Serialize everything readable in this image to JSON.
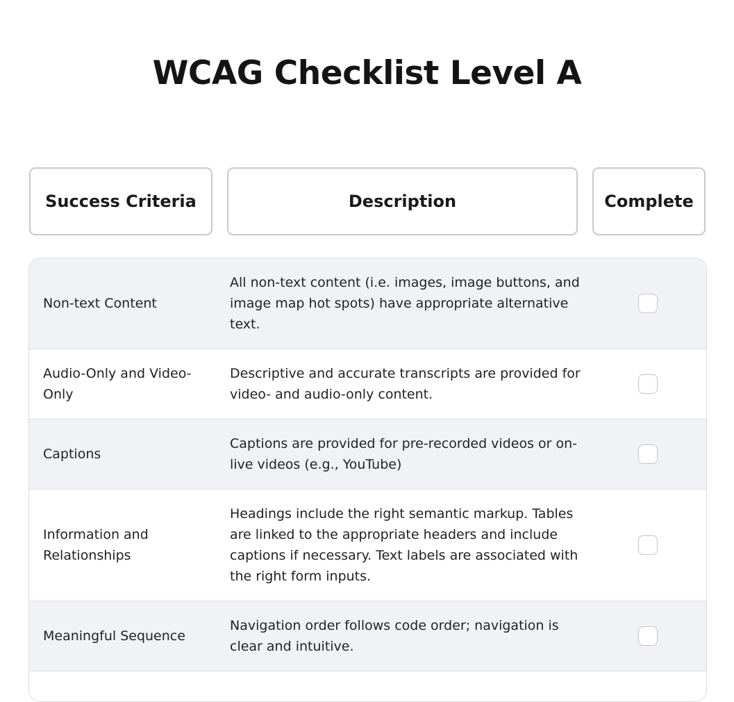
{
  "page": {
    "title": "WCAG Checklist Level A"
  },
  "headers": {
    "criteria": "Success Criteria",
    "description": "Description",
    "complete": "Complete"
  },
  "rows": [
    {
      "criteria": "Non-text Content",
      "description": "All non-text content (i.e. images, image buttons, and image map hot spots) have appropriate alternative text.",
      "complete": false
    },
    {
      "criteria": "Audio-Only and Video-Only",
      "description": "Descriptive and accurate transcripts are provided for video- and audio-only content.",
      "complete": false
    },
    {
      "criteria": "Captions",
      "description": "Captions are provided for pre-recorded videos or on-live videos (e.g., YouTube)",
      "complete": false
    },
    {
      "criteria": "Information and Relationships",
      "description": "Headings include the right semantic markup. Tables are linked to the appropriate headers and include captions if necessary. Text labels are associated with the right form inputs.",
      "complete": false
    },
    {
      "criteria": "Meaningful Sequence",
      "description": "Navigation order follows code order; navigation is clear and intuitive.",
      "complete": false
    }
  ],
  "colors": {
    "shaded_row": "#f1f2f5",
    "border": "#dcdce0",
    "text": "#222222"
  }
}
